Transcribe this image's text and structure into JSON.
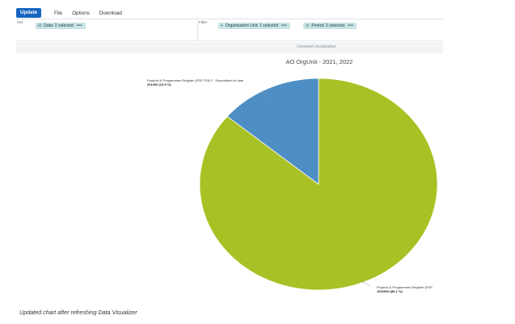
{
  "menubar": {
    "update_label": "Update",
    "file_label": "File",
    "options_label": "Options",
    "download_label": "Download"
  },
  "layout": {
    "series_label": "ries",
    "filter_label": "Filter",
    "data_chip": {
      "icon": "database-icon",
      "label": "Data: 2 selected",
      "more": "•••"
    },
    "org_unit_chip": {
      "icon": "org-unit-icon",
      "label": "Organisation Unit: 1 selected",
      "more": "•••"
    },
    "period_chip": {
      "icon": "clock-icon",
      "label": "Period: 2 selected",
      "more": "•••"
    }
  },
  "status": {
    "text": "Unsaved visualization"
  },
  "chart_data": {
    "type": "pie",
    "title": "AO OrgUnit - 2021, 2022",
    "slices": [
      {
        "name": "Projects & Programmes Register (PSP ",
        "value": 1616000,
        "percent_label": "1616000 (86.1 %)",
        "color": "#a8c124"
      },
      {
        "name": "Projects & Programmes Register (PSP TEI) P - Expenditure to date",
        "value": 261400,
        "percent_label": "261400 (13.9 %)",
        "color": "#4d8ec4"
      }
    ]
  },
  "caption": "Updated chart after refreshing Data Visualizer"
}
